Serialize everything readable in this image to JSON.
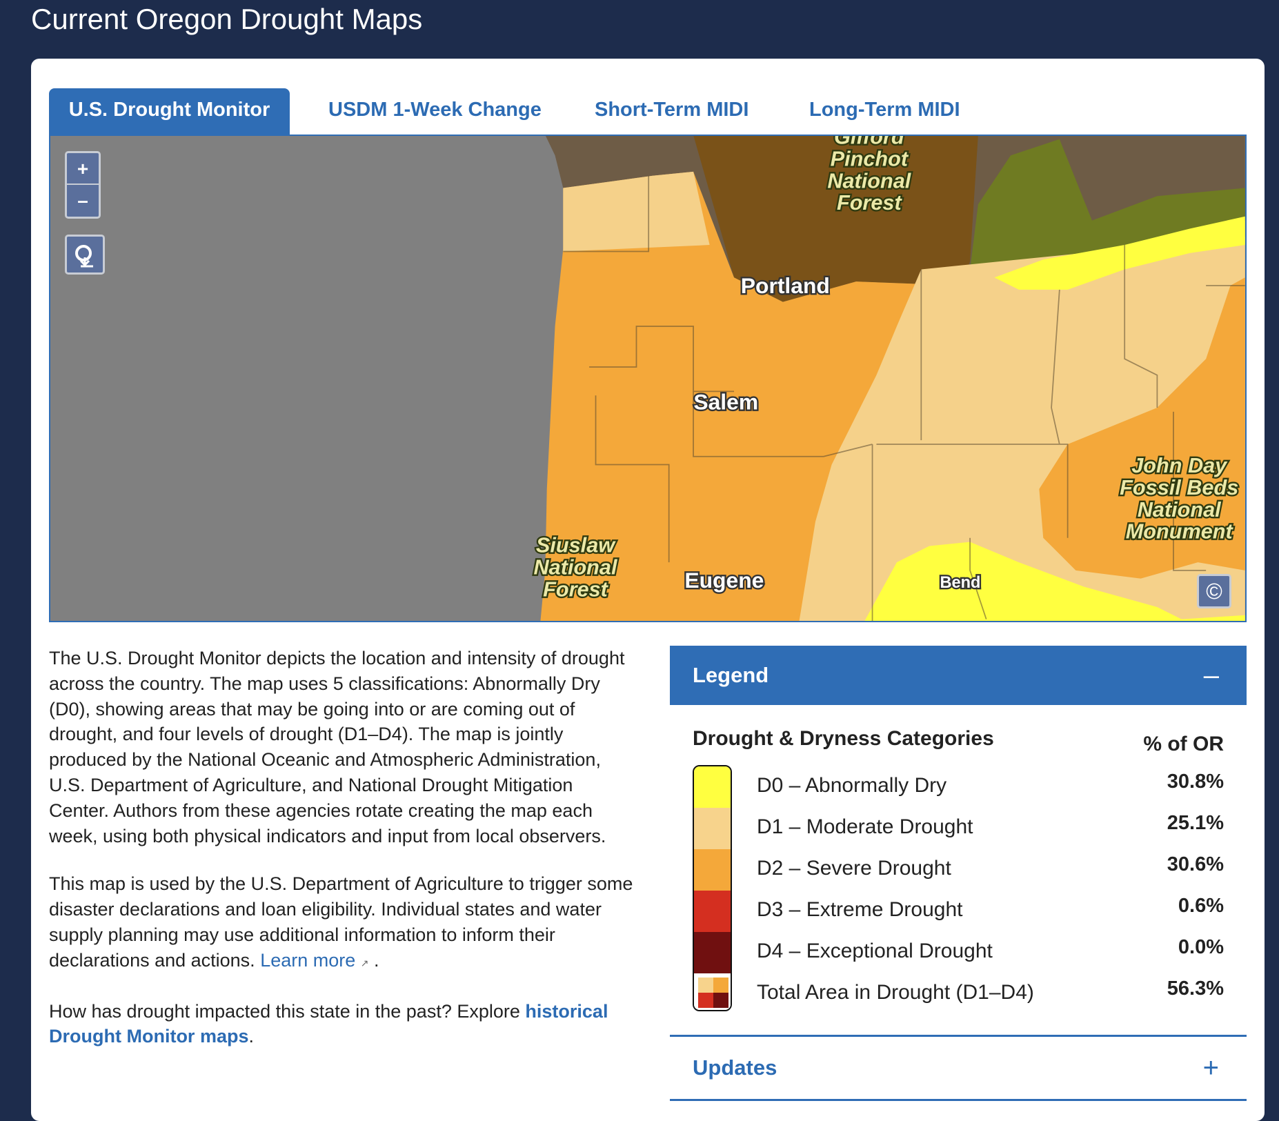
{
  "header": {
    "title": "Current Oregon Drought Maps"
  },
  "tabs": [
    "U.S. Drought Monitor",
    "USDM 1-Week Change",
    "Short-Term MIDI",
    "Long-Term MIDI"
  ],
  "map": {
    "zoom_in": "+",
    "zoom_out": "–",
    "cities": [
      {
        "text": "Portland"
      },
      {
        "text": "Salem"
      },
      {
        "text": "Eugene"
      },
      {
        "text": "Bend"
      }
    ],
    "forests": [
      {
        "lines": [
          "Gifford",
          "Pinchot",
          "National",
          "Forest"
        ]
      },
      {
        "lines": [
          "Siuslaw",
          "National",
          "Forest"
        ]
      },
      {
        "lines": [
          "John Day",
          "Fossil Beds",
          "National",
          "Monument"
        ]
      }
    ]
  },
  "description": {
    "p1": "The U.S. Drought Monitor depicts the location and intensity of drought across the country. The map uses 5 classifications: Abnormally Dry (D0), showing areas that may be going into or are coming out of drought, and four levels of drought (D1–D4). The map is jointly produced by the National Oceanic and Atmospheric Administration,  U.S. Department of Agriculture, and National Drought Mitigation Center. Authors from these agencies rotate creating the map each week, using both physical indicators and  input from local observers.",
    "p2": {
      "text": "This map is used by the U.S. Department of Agriculture to trigger some disaster declarations and loan eligibility. Individual states and water supply planning may use additional information to inform their declarations and actions.",
      "link": "Learn more",
      "end": "."
    },
    "p3": {
      "text": "How has drought impacted this state in the past? Explore",
      "link": "historical Drought Monitor maps",
      "end": "."
    }
  },
  "legend": {
    "title": "Legend",
    "toggle": "–",
    "heading": "Drought & Dryness Categories",
    "column": "% of OR",
    "rows": [
      {
        "label": "D0 – Abnormally Dry",
        "percent": "30.8%",
        "color": "#ffff40"
      },
      {
        "label": "D1 – Moderate Drought",
        "percent": "25.1%",
        "color": "#f7d38c"
      },
      {
        "label": "D2 – Severe Drought",
        "percent": "30.6%",
        "color": "#f4a83a"
      },
      {
        "label": "D3 – Extreme Drought",
        "percent": "0.6%",
        "color": "#d42f20"
      },
      {
        "label": "D4 – Exceptional Drought",
        "percent": "0.0%",
        "color": "#701010"
      },
      {
        "label": "Total Area in Drought (D1–D4)",
        "percent": "56.3%"
      }
    ]
  },
  "updates": {
    "title": "Updates",
    "toggle": "+"
  }
}
